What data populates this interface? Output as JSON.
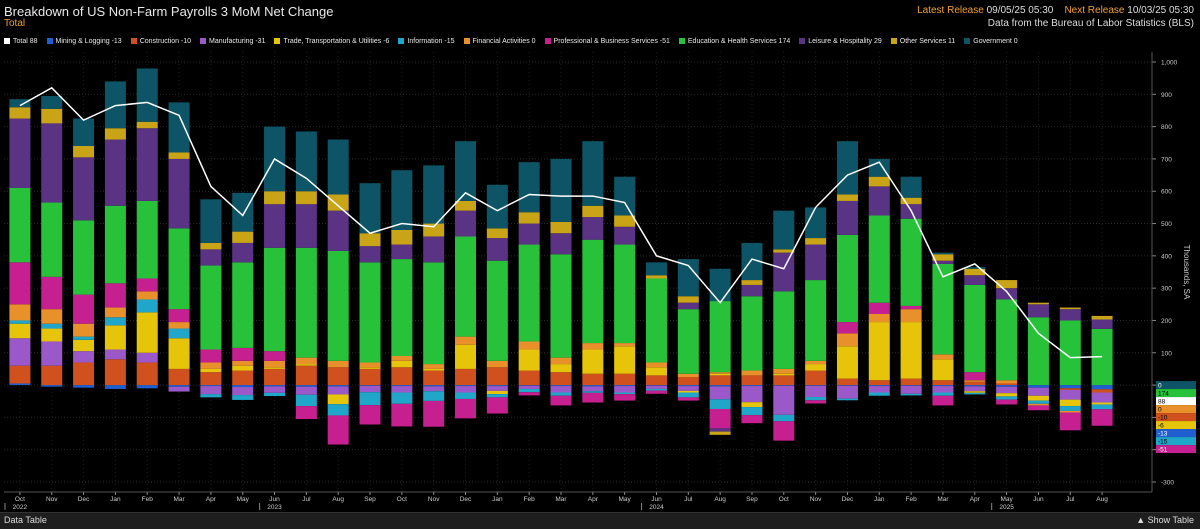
{
  "header": {
    "title": "Breakdown of US Non-Farm Payrolls 3 MoM Net Change",
    "subtitle": "Total",
    "latest_release_label": "Latest Release",
    "latest_release_value": "09/05/25 05:30",
    "next_release_label": "Next Release",
    "next_release_value": "10/03/25 05:30",
    "source": "Data from the Bureau of Labor Statistics (BLS)"
  },
  "legend": [
    {
      "label": "Total 88",
      "color": "#ffffff"
    },
    {
      "label": "Mining & Logging -13",
      "color": "#1f5fd0"
    },
    {
      "label": "Construction -10",
      "color": "#d0501e"
    },
    {
      "label": "Manufacturing -31",
      "color": "#9b58c8"
    },
    {
      "label": "Trade, Transportation & Utilities -6",
      "color": "#e6c40a"
    },
    {
      "label": "Information -15",
      "color": "#1fa6c9"
    },
    {
      "label": "Financial Activities 0",
      "color": "#e8902a"
    },
    {
      "label": "Professional & Business Services -51",
      "color": "#c51f90"
    },
    {
      "label": "Education & Health Services 174",
      "color": "#27c23a"
    },
    {
      "label": "Leisure & Hospitality 29",
      "color": "#5a3385"
    },
    {
      "label": "Other Services 11",
      "color": "#c9a417"
    },
    {
      "label": "Government 0",
      "color": "#0d5566"
    }
  ],
  "footer": {
    "data_table": "Data Table",
    "show_table": "▲ Show Table"
  },
  "chart_data": {
    "type": "bar",
    "stacked": true,
    "ylabel": "Thousands, SA",
    "ylim": [
      -300,
      1000
    ],
    "yticks": [
      -300,
      -200,
      -100,
      0,
      100,
      200,
      300,
      400,
      500,
      600,
      700,
      800,
      900,
      "1,000"
    ],
    "grid": true,
    "legend_position": "top",
    "categories": [
      "Oct",
      "Nov",
      "Dec",
      "Jan",
      "Feb",
      "Mar",
      "Apr",
      "May",
      "Jun",
      "Jul",
      "Aug",
      "Sep",
      "Oct",
      "Nov",
      "Dec",
      "Jan",
      "Feb",
      "Mar",
      "Apr",
      "May",
      "Jun",
      "Jul",
      "Aug",
      "Sep",
      "Oct",
      "Nov",
      "Dec",
      "Jan",
      "Feb",
      "Mar",
      "Apr",
      "May",
      "Jun",
      "Jul",
      "Aug"
    ],
    "year_labels": [
      {
        "year": "2022",
        "index": 0
      },
      {
        "year": "2023",
        "index": 8
      },
      {
        "year": "2024",
        "index": 20
      },
      {
        "year": "2025",
        "index": 31
      }
    ],
    "series": [
      {
        "name": "Mining & Logging",
        "color": "#1f5fd0",
        "values": [
          5,
          -5,
          -8,
          -12,
          -10,
          -5,
          -3,
          -6,
          -4,
          -5,
          -4,
          -2,
          -3,
          -4,
          -3,
          -3,
          -2,
          -3,
          -4,
          -3,
          -2,
          -3,
          -4,
          -3,
          -2,
          -2,
          -2,
          -3,
          -2,
          -3,
          -4,
          -5,
          -8,
          -10,
          -13
        ]
      },
      {
        "name": "Construction",
        "color": "#d0501e",
        "values": [
          55,
          60,
          70,
          80,
          70,
          50,
          40,
          45,
          50,
          60,
          55,
          50,
          55,
          45,
          50,
          55,
          45,
          40,
          35,
          35,
          30,
          25,
          30,
          30,
          30,
          45,
          20,
          15,
          20,
          15,
          10,
          5,
          0,
          -5,
          -10
        ]
      },
      {
        "name": "Manufacturing",
        "color": "#9b58c8",
        "values": [
          85,
          75,
          35,
          30,
          30,
          -15,
          -25,
          -25,
          -20,
          -25,
          -25,
          -20,
          -20,
          -15,
          -20,
          -15,
          -10,
          -20,
          -15,
          -20,
          -10,
          -15,
          -40,
          -50,
          -90,
          -35,
          -40,
          -20,
          -25,
          -20,
          -15,
          -20,
          -25,
          -30,
          -31
        ]
      },
      {
        "name": "Trade, Transportation & Utilities",
        "color": "#e6c40a",
        "values": [
          45,
          40,
          35,
          75,
          125,
          95,
          10,
          15,
          5,
          5,
          -30,
          5,
          20,
          5,
          75,
          -10,
          65,
          25,
          75,
          85,
          25,
          -5,
          5,
          -15,
          5,
          20,
          100,
          180,
          175,
          65,
          -5,
          -10,
          -15,
          -20,
          -6
        ]
      },
      {
        "name": "Information",
        "color": "#1fa6c9",
        "values": [
          10,
          15,
          10,
          25,
          40,
          30,
          -10,
          -15,
          -10,
          -35,
          -35,
          -40,
          -35,
          -30,
          -20,
          -10,
          -10,
          -10,
          -5,
          -5,
          -5,
          -15,
          -30,
          -25,
          -20,
          -10,
          -5,
          -10,
          -5,
          -10,
          -5,
          -10,
          -10,
          -15,
          -15
        ]
      },
      {
        "name": "Financial Activities",
        "color": "#e8902a",
        "values": [
          50,
          45,
          40,
          30,
          25,
          20,
          20,
          15,
          20,
          20,
          20,
          15,
          15,
          15,
          25,
          20,
          25,
          20,
          20,
          10,
          15,
          10,
          5,
          15,
          15,
          10,
          40,
          25,
          40,
          15,
          5,
          10,
          -5,
          -5,
          0
        ]
      },
      {
        "name": "Professional & Business Services",
        "color": "#c51f90",
        "values": [
          130,
          100,
          90,
          75,
          40,
          40,
          40,
          40,
          30,
          -40,
          -90,
          -60,
          -70,
          -80,
          -60,
          -50,
          -10,
          -30,
          -30,
          -20,
          -10,
          -10,
          -60,
          -25,
          -60,
          -10,
          35,
          35,
          10,
          -30,
          25,
          -15,
          -15,
          -55,
          -51
        ]
      },
      {
        "name": "Education & Health Services",
        "color": "#27c23a",
        "values": [
          230,
          230,
          230,
          240,
          240,
          250,
          260,
          265,
          320,
          340,
          340,
          310,
          300,
          315,
          310,
          310,
          300,
          320,
          320,
          305,
          260,
          200,
          220,
          230,
          240,
          250,
          270,
          270,
          270,
          280,
          270,
          250,
          210,
          200,
          174
        ]
      },
      {
        "name": "Leisure & Hospitality",
        "color": "#5a3385",
        "values": [
          215,
          245,
          195,
          205,
          225,
          215,
          50,
          60,
          135,
          135,
          125,
          50,
          45,
          80,
          80,
          70,
          65,
          65,
          70,
          55,
          0,
          20,
          -10,
          35,
          120,
          110,
          105,
          90,
          45,
          10,
          30,
          35,
          40,
          35,
          29
        ]
      },
      {
        "name": "Other Services",
        "color": "#c9a417",
        "values": [
          35,
          45,
          35,
          35,
          20,
          20,
          20,
          35,
          40,
          40,
          50,
          40,
          45,
          40,
          30,
          30,
          35,
          35,
          35,
          35,
          10,
          20,
          -10,
          15,
          10,
          20,
          20,
          30,
          20,
          20,
          20,
          25,
          5,
          5,
          11
        ]
      },
      {
        "name": "Government",
        "color": "#0d5566",
        "values": [
          25,
          40,
          85,
          145,
          165,
          155,
          135,
          120,
          200,
          185,
          170,
          155,
          185,
          180,
          185,
          135,
          155,
          195,
          200,
          120,
          40,
          115,
          100,
          115,
          120,
          95,
          165,
          55,
          65,
          5,
          5,
          0,
          0,
          0,
          0
        ]
      }
    ],
    "total": {
      "name": "Total",
      "color": "#ffffff",
      "values": [
        865,
        920,
        820,
        865,
        875,
        835,
        615,
        525,
        700,
        640,
        555,
        470,
        500,
        490,
        595,
        540,
        590,
        585,
        585,
        565,
        400,
        370,
        255,
        390,
        360,
        550,
        650,
        690,
        540,
        335,
        375,
        290,
        160,
        85,
        88
      ]
    },
    "right_tags": [
      {
        "label": "0",
        "value": 0,
        "color": "#0d5566",
        "text_color": "#ffffff"
      },
      {
        "label": "174",
        "value": 174,
        "color": "#27c23a",
        "text_color": "#000000"
      },
      {
        "label": "88",
        "value": 88,
        "color": "#ffffff",
        "text_color": "#000000"
      },
      {
        "label": "0",
        "value": 0,
        "color": "#e8902a",
        "text_color": "#000000"
      },
      {
        "label": "-10",
        "value": -10,
        "color": "#d0501e",
        "text_color": "#000000"
      },
      {
        "label": "-6",
        "value": -6,
        "color": "#e6c40a",
        "text_color": "#000000"
      },
      {
        "label": "-13",
        "value": -13,
        "color": "#1f5fd0",
        "text_color": "#ffffff"
      },
      {
        "label": "-15",
        "value": -15,
        "color": "#1fa6c9",
        "text_color": "#000000"
      },
      {
        "label": "-51",
        "value": -51,
        "color": "#c51f90",
        "text_color": "#ffffff"
      }
    ]
  }
}
